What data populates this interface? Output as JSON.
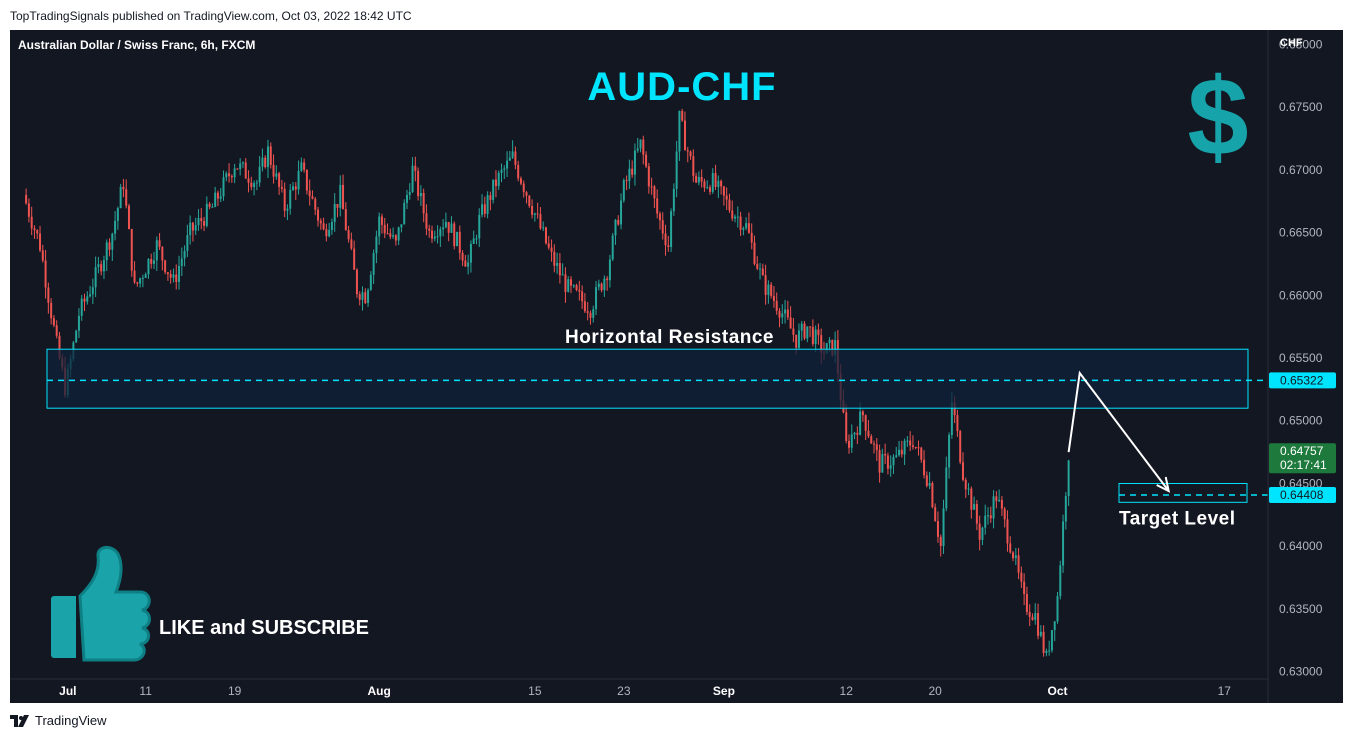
{
  "header": {
    "published_line": "TopTradingSignals published on TradingView.com, Oct 03, 2022 18:42 UTC"
  },
  "footer": {
    "brand": "TradingView"
  },
  "chart_data": {
    "type": "candlestick",
    "symbol_line": "Australian Dollar / Swiss Franc, 6h, FXCM",
    "title": "AUD-CHF",
    "currency": "CHF",
    "ylim": [
      0.6295,
      0.6805
    ],
    "y_ticks": [
      "0.68000",
      "0.67500",
      "0.67000",
      "0.66500",
      "0.66000",
      "0.65500",
      "0.65000",
      "0.64500",
      "0.64000",
      "0.63500",
      "0.63000"
    ],
    "x_ticks": [
      {
        "label": "Jul",
        "bold": true,
        "day": 4
      },
      {
        "label": "11",
        "bold": false,
        "day": 11
      },
      {
        "label": "19",
        "bold": false,
        "day": 19
      },
      {
        "label": "Aug",
        "bold": true,
        "day": 32
      },
      {
        "label": "15",
        "bold": false,
        "day": 46
      },
      {
        "label": "23",
        "bold": false,
        "day": 54
      },
      {
        "label": "Sep",
        "bold": true,
        "day": 63
      },
      {
        "label": "12",
        "bold": false,
        "day": 74
      },
      {
        "label": "20",
        "bold": false,
        "day": 82
      },
      {
        "label": "Oct",
        "bold": true,
        "day": 93
      },
      {
        "label": "17",
        "bold": false,
        "day": 108
      }
    ],
    "colors": {
      "up": "#26a69a",
      "down": "#ef5350",
      "accent": "#00e5ff",
      "zone": "#10213a",
      "price_tag": "#1e7a3c"
    },
    "close_anchors": [
      [
        0,
        0.668
      ],
      [
        1.5,
        0.664
      ],
      [
        3,
        0.656
      ],
      [
        3.8,
        0.6525
      ],
      [
        5,
        0.6585
      ],
      [
        6.5,
        0.6615
      ],
      [
        8,
        0.665
      ],
      [
        9,
        0.669
      ],
      [
        10,
        0.6605
      ],
      [
        12,
        0.664
      ],
      [
        13.5,
        0.661
      ],
      [
        15,
        0.665
      ],
      [
        17,
        0.667
      ],
      [
        19,
        0.6705
      ],
      [
        21,
        0.669
      ],
      [
        22,
        0.6715
      ],
      [
        23.5,
        0.667
      ],
      [
        25,
        0.67
      ],
      [
        27,
        0.665
      ],
      [
        28.5,
        0.668
      ],
      [
        30,
        0.6605
      ],
      [
        30.8,
        0.66
      ],
      [
        32,
        0.666
      ],
      [
        33.5,
        0.664
      ],
      [
        35,
        0.67
      ],
      [
        36.5,
        0.665
      ],
      [
        38,
        0.666
      ],
      [
        40,
        0.6625
      ],
      [
        41,
        0.666
      ],
      [
        42.5,
        0.669
      ],
      [
        44,
        0.671
      ],
      [
        46,
        0.6665
      ],
      [
        47.5,
        0.663
      ],
      [
        49,
        0.6605
      ],
      [
        51,
        0.659
      ],
      [
        52.5,
        0.662
      ],
      [
        54,
        0.6685
      ],
      [
        55.5,
        0.672
      ],
      [
        57,
        0.6665
      ],
      [
        58,
        0.664
      ],
      [
        59,
        0.674
      ],
      [
        60.5,
        0.669
      ],
      [
        62,
        0.669
      ],
      [
        63.5,
        0.667
      ],
      [
        65,
        0.6655
      ],
      [
        66.5,
        0.661
      ],
      [
        68,
        0.659
      ],
      [
        69.5,
        0.6565
      ],
      [
        70.5,
        0.6575
      ],
      [
        72,
        0.6555
      ],
      [
        73,
        0.656
      ],
      [
        74,
        0.648
      ],
      [
        75.5,
        0.6505
      ],
      [
        77,
        0.6465
      ],
      [
        78.5,
        0.647
      ],
      [
        80,
        0.6485
      ],
      [
        81.5,
        0.645
      ],
      [
        82.5,
        0.64
      ],
      [
        83.5,
        0.6515
      ],
      [
        84.5,
        0.646
      ],
      [
        86,
        0.641
      ],
      [
        87.5,
        0.644
      ],
      [
        89,
        0.6395
      ],
      [
        90,
        0.6355
      ],
      [
        91,
        0.6345
      ],
      [
        92,
        0.631
      ],
      [
        93,
        0.636
      ],
      [
        94,
        0.6475
      ]
    ],
    "resistance_zone": {
      "label": "Horizontal Resistance",
      "top": 0.6557,
      "bottom": 0.651
    },
    "resistance_level": "0.65322",
    "projection": [
      [
        94,
        0.6475
      ],
      [
        95,
        0.6538
      ],
      [
        103,
        0.6444
      ]
    ],
    "target": {
      "label": "Target Level",
      "value": "0.64408",
      "top": 0.645,
      "bottom": 0.6435
    },
    "current": {
      "price": "0.64757",
      "countdown": "02:17:41"
    }
  },
  "overlays": {
    "promo_text": "LIKE and SUBSCRIBE",
    "dollar_symbol": "$"
  }
}
